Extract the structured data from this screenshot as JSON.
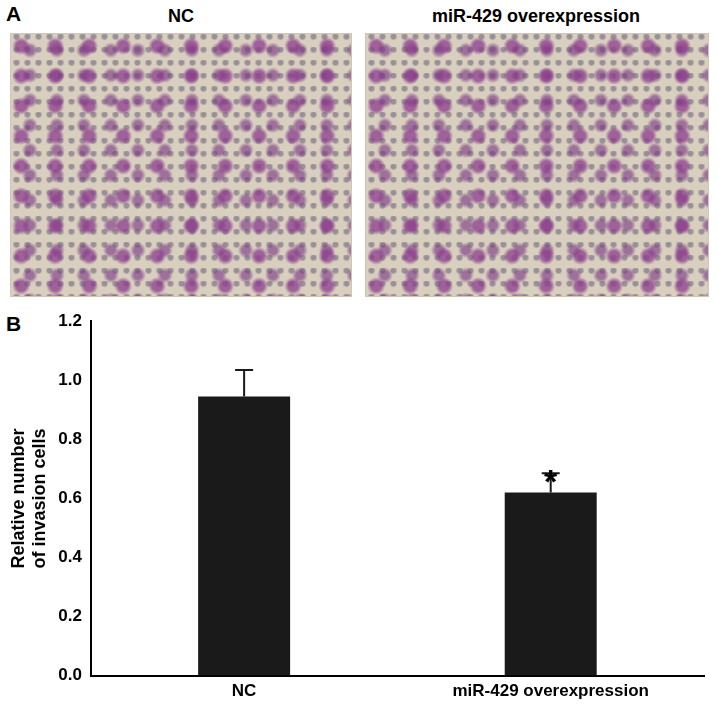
{
  "figure": {
    "panel_a": {
      "label": "A",
      "image_titles": [
        "NC",
        "miR-429 overexpression"
      ]
    },
    "panel_b": {
      "label": "B"
    }
  },
  "chart_data": {
    "type": "bar",
    "y_label": [
      "Relative number",
      "of invasion cells"
    ],
    "categories": [
      "NC",
      "miR-429 overexpression"
    ],
    "values": [
      0.945,
      0.62
    ],
    "errors": [
      0.09,
      0.065
    ],
    "color": "#1a1a1a",
    "ylim": [
      0,
      1.2
    ],
    "yticks": [
      {
        "value": 0,
        "label": "0.0"
      },
      0.2,
      0.4,
      0.6,
      0.8,
      {
        "value": 1,
        "label": "1.0"
      },
      1.2
    ],
    "grid": false,
    "annotations": [
      {
        "text": "*",
        "category": "miR-429 overexpression"
      }
    ]
  }
}
